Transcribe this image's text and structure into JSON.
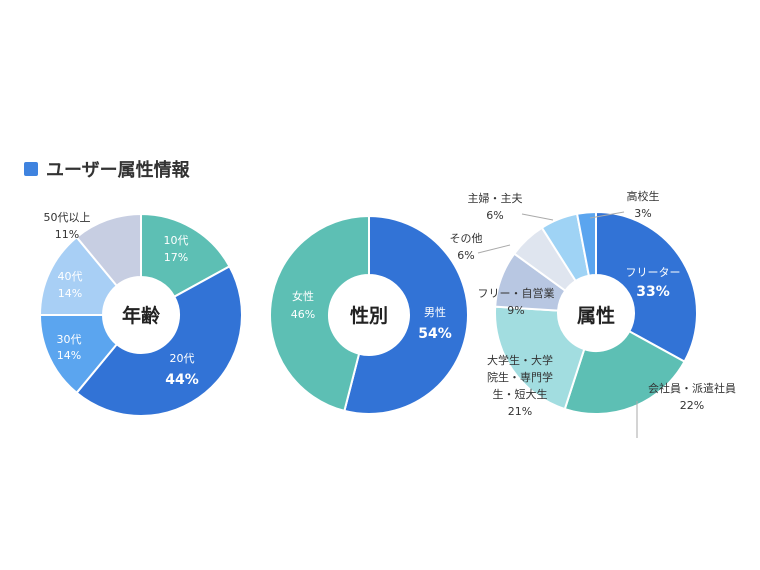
{
  "header": {
    "title": "ユーザー属性情報",
    "accent_color": "#3f83df"
  },
  "chart_data": [
    {
      "type": "pie",
      "center_label": "年齢",
      "categories": [
        "10代",
        "20代",
        "30代",
        "40代",
        "50代以上"
      ],
      "values": [
        17,
        44,
        14,
        14,
        11
      ],
      "value_labels": [
        "17%",
        "44%",
        "14%",
        "14%",
        "11%"
      ],
      "colors": [
        "#5dbfb4",
        "#3273d6",
        "#5ba5ef",
        "#a8cff5",
        "#c7cee2"
      ]
    },
    {
      "type": "pie",
      "center_label": "性別",
      "categories": [
        "男性",
        "女性"
      ],
      "values": [
        54,
        46
      ],
      "value_labels": [
        "54%",
        "46%"
      ],
      "colors": [
        "#3273d6",
        "#5dbfb4"
      ]
    },
    {
      "type": "pie",
      "center_label": "属性",
      "categories": [
        "フリーター",
        "会社員・派遣社員",
        "大学生・大学院生・専門学生・短大生",
        "フリー・自営業",
        "その他",
        "主婦・主夫",
        "高校生"
      ],
      "category_lines": [
        [
          "フリーター"
        ],
        [
          "会社員・派遣社員"
        ],
        [
          "大学生・大学",
          "院生・専門学",
          "生・短大生"
        ],
        [
          "フリー・自営業"
        ],
        [
          "その他"
        ],
        [
          "主婦・主夫"
        ],
        [
          "高校生"
        ]
      ],
      "values": [
        33,
        22,
        21,
        9,
        6,
        6,
        3
      ],
      "value_labels": [
        "33%",
        "22%",
        "21%",
        "9%",
        "6%",
        "6%",
        "3%"
      ],
      "colors": [
        "#3273d6",
        "#5dbfb4",
        "#a2dde0",
        "#b8c7e2",
        "#dfe5ef",
        "#9fd3f5",
        "#5ba5ef"
      ]
    }
  ]
}
